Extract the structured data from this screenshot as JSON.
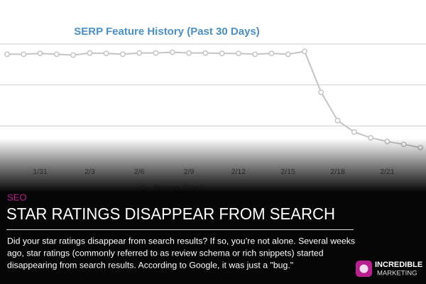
{
  "chart_data": {
    "type": "line",
    "title": "SERP Feature History (Past 30 Days)",
    "categories": [
      null,
      null,
      "1/31",
      null,
      null,
      "2/3",
      null,
      null,
      "2/6",
      null,
      null,
      "2/9",
      null,
      null,
      "2/12",
      null,
      null,
      "2/15",
      null,
      null,
      "2/18",
      null,
      null,
      "2/21",
      null,
      null
    ],
    "series": [
      {
        "name": "Reviews (Stars)",
        "color": "#c4c4c4",
        "values": [
          2.75,
          2.75,
          2.77,
          2.75,
          2.73,
          2.78,
          2.77,
          2.75,
          2.78,
          2.78,
          2.8,
          2.78,
          2.78,
          2.77,
          2.77,
          2.75,
          2.77,
          2.75,
          2.82,
          1.82,
          1.13,
          0.85,
          0.71,
          0.62,
          0.55,
          0.47
        ]
      }
    ],
    "ylim": [
      0,
      3
    ],
    "grid": true
  },
  "article": {
    "category": "SEO",
    "headline": "STAR RATINGS DISAPPEAR FROM SEARCH",
    "body_lines": [
      "Did your star ratings disappear from search results? If so, you’re not alone. Several weeks",
      "ago, star ratings (commonly referred to as review schema or rich snippets) started",
      "disappearing from search results. According to Google, it was just a \"bug.\""
    ]
  },
  "logo": {
    "line1": "INCREDIBLE",
    "line2": "MARKETING"
  }
}
